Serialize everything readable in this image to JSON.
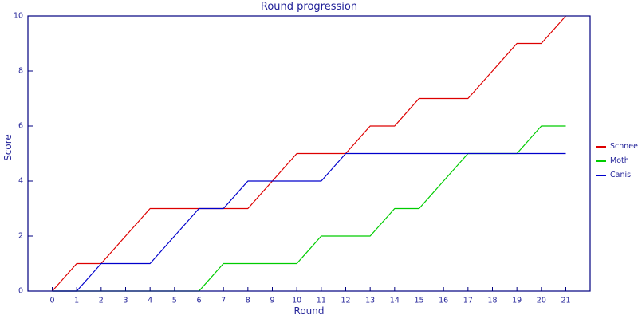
{
  "chart_data": {
    "type": "line",
    "title": "Round progression",
    "xlabel": "Round",
    "ylabel": "Score",
    "x": [
      0,
      1,
      2,
      3,
      4,
      5,
      6,
      7,
      8,
      9,
      10,
      11,
      12,
      13,
      14,
      15,
      16,
      17,
      18,
      19,
      20,
      21
    ],
    "ylim": [
      0,
      10
    ],
    "yticks": [
      0,
      2,
      4,
      6,
      8,
      10
    ],
    "grid": false,
    "legend_position": "right",
    "frame_color": "#000080",
    "text_color": "#26269a",
    "series": [
      {
        "name": "Schnee",
        "color": "#dd0000",
        "values": [
          0,
          1,
          1,
          2,
          3,
          3,
          3,
          3,
          3,
          4,
          5,
          5,
          5,
          6,
          6,
          7,
          7,
          7,
          8,
          9,
          9,
          10
        ]
      },
      {
        "name": "Moth",
        "color": "#00cc00",
        "values": [
          0,
          0,
          0,
          0,
          0,
          0,
          0,
          1,
          1,
          1,
          1,
          2,
          2,
          2,
          3,
          3,
          4,
          5,
          5,
          5,
          6,
          6
        ]
      },
      {
        "name": "Canis",
        "color": "#0000cc",
        "values": [
          0,
          0,
          1,
          1,
          1,
          2,
          3,
          3,
          4,
          4,
          4,
          4,
          5,
          5,
          5,
          5,
          5,
          5,
          5,
          5,
          5,
          5
        ]
      }
    ]
  }
}
